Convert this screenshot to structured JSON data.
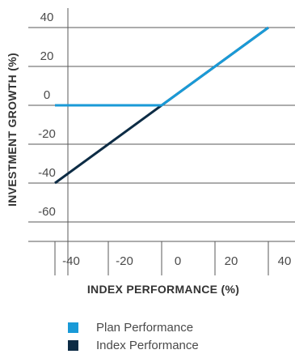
{
  "chart_data": {
    "type": "line",
    "xlabel": "INDEX PERFORMANCE (%)",
    "ylabel": "INVESTMENT GROWTH (%)",
    "xlim": [
      -50,
      50
    ],
    "ylim": [
      -70,
      50
    ],
    "x_ticks": [
      -40,
      -20,
      0,
      20,
      40
    ],
    "y_ticks": [
      40,
      20,
      0,
      -20,
      -40,
      -60
    ],
    "grid": true,
    "legend_position": "bottom",
    "series": [
      {
        "name": "Plan Performance",
        "color": "#1a9ad7",
        "x": [
          -40,
          0,
          40
        ],
        "y": [
          0,
          0,
          40
        ]
      },
      {
        "name": "Index Performance",
        "color": "#0d2c45",
        "x": [
          -40,
          40
        ],
        "y": [
          -40,
          40
        ]
      }
    ]
  }
}
